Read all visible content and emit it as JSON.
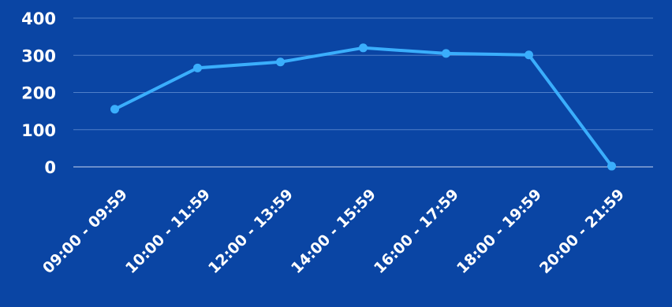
{
  "chart_data": {
    "type": "line",
    "title": "",
    "xlabel": "",
    "ylabel": "",
    "categories": [
      "09:00 - 09:59",
      "10:00 - 11:59",
      "12:00 - 13:59",
      "14:00 - 15:59",
      "16:00 - 17:59",
      "18:00 - 19:59",
      "20:00 - 21:59"
    ],
    "series": [
      {
        "values": [
          155,
          266,
          282,
          320,
          305,
          301,
          2
        ]
      }
    ],
    "ylim": [
      0,
      400
    ],
    "yticks": [
      "0",
      "100",
      "200",
      "300",
      "400"
    ],
    "grid": true,
    "legend": "none",
    "colors": {
      "background": "#0a45a4",
      "line": "#3aaefc",
      "grid": "#4f7fc8",
      "text": "#ffffff"
    }
  }
}
